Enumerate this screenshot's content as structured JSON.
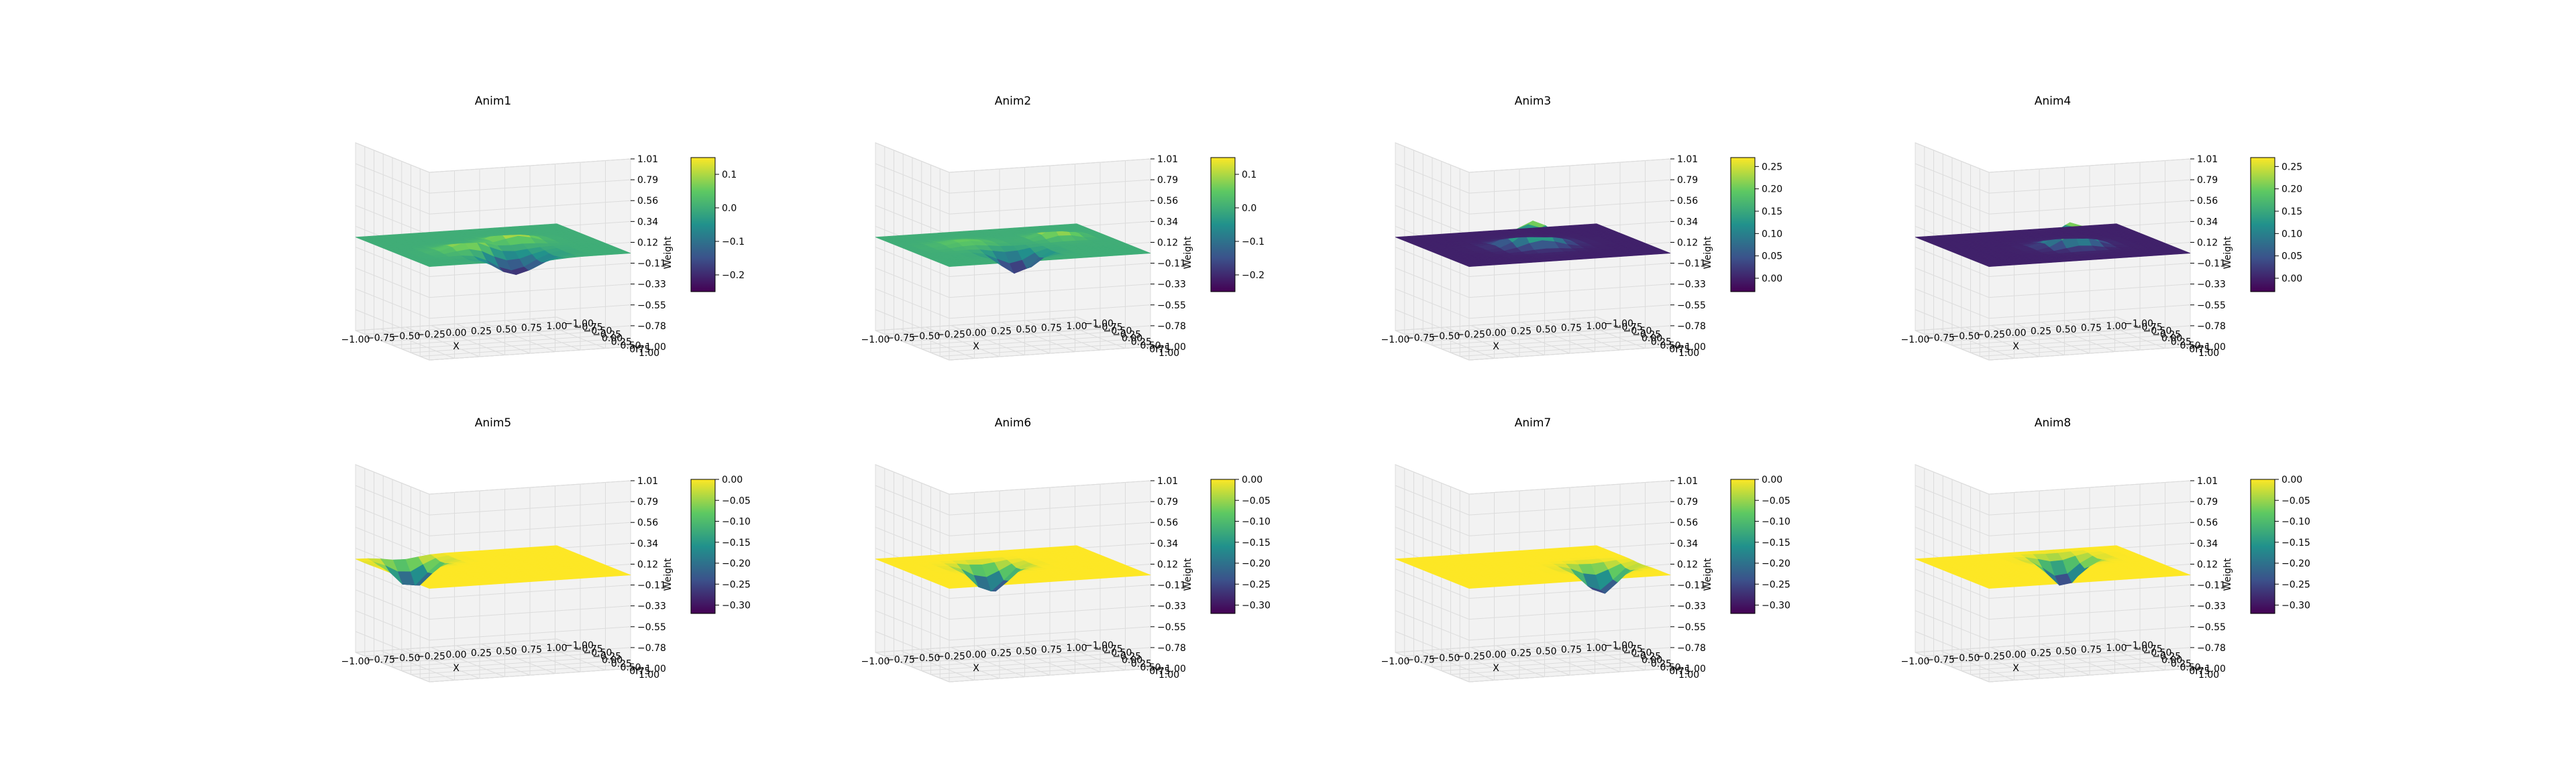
{
  "figure": {
    "grid": true,
    "colormap": [
      "#440154",
      "#3b528b",
      "#21918c",
      "#5ec962",
      "#fde725"
    ]
  },
  "chart_data": [
    {
      "type": "surface3d",
      "title": "Anim1",
      "xlabel": "X",
      "ylabel": "Y",
      "zlabel": "Weight",
      "xlim": [
        -1,
        1
      ],
      "ylim": [
        -1,
        1
      ],
      "zlim": [
        -1.0,
        1.01
      ],
      "x_ticks": [
        "−1.00",
        "−0.75",
        "−0.50",
        "−0.25",
        "0.00",
        "0.25",
        "0.50",
        "0.75",
        "1.00"
      ],
      "y_ticks": [
        "−1.00",
        "−0.75",
        "−0.50",
        "−0.25",
        "0.00",
        "0.25",
        "0.50",
        "0.75",
        "1.00"
      ],
      "z_ticks": [
        "1.01",
        "0.79",
        "0.56",
        "0.34",
        "0.12",
        "−0.11",
        "−0.33",
        "−0.55",
        "−0.78",
        "−1.00"
      ],
      "colorbar_range": [
        -0.25,
        0.15
      ],
      "colorbar_ticks": [
        "0.1",
        "0.0",
        "−0.1",
        "−0.2"
      ],
      "surface": {
        "bumps": [
          [
            -0.3,
            0.2,
            0.12,
            0.35
          ],
          [
            0.25,
            -0.15,
            0.14,
            0.3
          ],
          [
            0.0,
            0.6,
            -0.22,
            0.4
          ]
        ]
      }
    },
    {
      "type": "surface3d",
      "title": "Anim2",
      "xlabel": "X",
      "ylabel": "Y",
      "zlabel": "Weight",
      "xlim": [
        -1,
        1
      ],
      "ylim": [
        -1,
        1
      ],
      "zlim": [
        -1.0,
        1.01
      ],
      "x_ticks": [
        "−1.00",
        "−0.75",
        "−0.50",
        "−0.25",
        "0.00",
        "0.25",
        "0.50",
        "0.75",
        "1.00"
      ],
      "y_ticks": [
        "−1.00",
        "−0.75",
        "−0.50",
        "−0.25",
        "0.00",
        "0.25",
        "0.50",
        "0.75",
        "1.00"
      ],
      "z_ticks": [
        "1.01",
        "0.79",
        "0.56",
        "0.34",
        "0.12",
        "−0.11",
        "−0.33",
        "−0.55",
        "−0.78",
        "−1.00"
      ],
      "colorbar_range": [
        -0.25,
        0.15
      ],
      "colorbar_ticks": [
        "0.1",
        "0.0",
        "−0.1",
        "−0.2"
      ],
      "surface": {
        "bumps": [
          [
            0.55,
            -0.3,
            0.14,
            0.25
          ],
          [
            -0.1,
            0.4,
            -0.24,
            0.3
          ],
          [
            -0.4,
            -0.2,
            0.06,
            0.35
          ]
        ]
      }
    },
    {
      "type": "surface3d",
      "title": "Anim3",
      "xlabel": "X",
      "ylabel": "Y",
      "zlabel": "Weight",
      "xlim": [
        -1,
        1
      ],
      "ylim": [
        -1,
        1
      ],
      "zlim": [
        -1.0,
        1.01
      ],
      "x_ticks": [
        "−1.00",
        "−0.75",
        "−0.50",
        "−0.25",
        "0.00",
        "0.25",
        "0.50",
        "0.75",
        "1.00"
      ],
      "y_ticks": [
        "−1.00",
        "−0.75",
        "−0.50",
        "−0.25",
        "0.00",
        "0.25",
        "0.50",
        "0.75",
        "1.00"
      ],
      "z_ticks": [
        "1.01",
        "0.79",
        "0.56",
        "0.34",
        "0.12",
        "−0.11",
        "−0.33",
        "−0.55",
        "−0.78",
        "−1.00"
      ],
      "colorbar_range": [
        -0.03,
        0.27
      ],
      "colorbar_ticks": [
        "0.25",
        "0.20",
        "0.15",
        "0.10",
        "0.05",
        "0.00"
      ],
      "surface": {
        "bumps": [
          [
            0.0,
            0.0,
            0.26,
            0.35
          ]
        ]
      }
    },
    {
      "type": "surface3d",
      "title": "Anim4",
      "xlabel": "X",
      "ylabel": "Y",
      "zlabel": "Weight",
      "xlim": [
        -1,
        1
      ],
      "ylim": [
        -1,
        1
      ],
      "zlim": [
        -1.0,
        1.01
      ],
      "x_ticks": [
        "−1.00",
        "−0.75",
        "−0.50",
        "−0.25",
        "0.00",
        "0.25",
        "0.50",
        "0.75",
        "1.00"
      ],
      "y_ticks": [
        "−1.00",
        "−0.75",
        "−0.50",
        "−0.25",
        "0.00",
        "0.25",
        "0.50",
        "0.75",
        "1.00"
      ],
      "z_ticks": [
        "1.01",
        "0.79",
        "0.56",
        "0.34",
        "0.12",
        "−0.11",
        "−0.33",
        "−0.55",
        "−0.78",
        "−1.00"
      ],
      "colorbar_range": [
        -0.03,
        0.27
      ],
      "colorbar_ticks": [
        "0.25",
        "0.20",
        "0.15",
        "0.10",
        "0.05",
        "0.00"
      ],
      "surface": {
        "bumps": [
          [
            0.15,
            0.1,
            0.26,
            0.3
          ]
        ]
      }
    },
    {
      "type": "surface3d",
      "title": "Anim5",
      "xlabel": "X",
      "ylabel": "Y",
      "zlabel": "Weight",
      "xlim": [
        -1,
        1
      ],
      "ylim": [
        -1,
        1
      ],
      "zlim": [
        -1.0,
        1.01
      ],
      "x_ticks": [
        "−1.00",
        "−0.75",
        "−0.50",
        "−0.25",
        "0.00",
        "0.25",
        "0.50",
        "0.75",
        "1.00"
      ],
      "y_ticks": [
        "−1.00",
        "−0.75",
        "−0.50",
        "−0.25",
        "0.00",
        "0.25",
        "0.50",
        "0.75",
        "1.00"
      ],
      "z_ticks": [
        "1.01",
        "0.79",
        "0.56",
        "0.34",
        "0.12",
        "−0.11",
        "−0.33",
        "−0.55",
        "−0.78",
        "−1.00"
      ],
      "colorbar_range": [
        -0.32,
        0.0
      ],
      "colorbar_ticks": [
        "0.00",
        "−0.05",
        "−0.10",
        "−0.15",
        "−0.20",
        "−0.25",
        "−0.30"
      ],
      "surface": {
        "bumps": [
          [
            -0.55,
            -0.7,
            -0.31,
            0.3
          ]
        ]
      }
    },
    {
      "type": "surface3d",
      "title": "Anim6",
      "xlabel": "X",
      "ylabel": "Y",
      "zlabel": "Weight",
      "xlim": [
        -1,
        1
      ],
      "ylim": [
        -1,
        1
      ],
      "zlim": [
        -1.0,
        1.01
      ],
      "x_ticks": [
        "−1.00",
        "−0.75",
        "−0.50",
        "−0.25",
        "0.00",
        "0.25",
        "0.50",
        "0.75",
        "1.00"
      ],
      "y_ticks": [
        "−1.00",
        "−0.75",
        "−0.50",
        "−0.25",
        "0.00",
        "0.25",
        "0.50",
        "0.75",
        "1.00"
      ],
      "z_ticks": [
        "1.01",
        "0.79",
        "0.56",
        "0.34",
        "0.12",
        "−0.11",
        "−0.33",
        "−0.55",
        "−0.78",
        "−1.00"
      ],
      "colorbar_range": [
        -0.32,
        0.0
      ],
      "colorbar_ticks": [
        "0.00",
        "−0.05",
        "−0.10",
        "−0.15",
        "−0.20",
        "−0.25",
        "−0.30"
      ],
      "surface": {
        "bumps": [
          [
            -0.15,
            -0.2,
            -0.31,
            0.3
          ]
        ]
      }
    },
    {
      "type": "surface3d",
      "title": "Anim7",
      "xlabel": "X",
      "ylabel": "Y",
      "zlabel": "Weight",
      "xlim": [
        -1,
        1
      ],
      "ylim": [
        -1,
        1
      ],
      "zlim": [
        -1.0,
        1.01
      ],
      "x_ticks": [
        "−1.00",
        "−0.75",
        "−0.50",
        "−0.25",
        "0.00",
        "0.25",
        "0.50",
        "0.75",
        "1.00"
      ],
      "y_ticks": [
        "−1.00",
        "−0.75",
        "−0.50",
        "−0.25",
        "0.00",
        "0.25",
        "0.50",
        "0.75",
        "1.00"
      ],
      "z_ticks": [
        "1.01",
        "0.79",
        "0.56",
        "0.34",
        "0.12",
        "−0.11",
        "−0.33",
        "−0.55",
        "−0.78",
        "−1.00"
      ],
      "colorbar_range": [
        -0.32,
        0.0
      ],
      "colorbar_ticks": [
        "0.00",
        "−0.05",
        "−0.10",
        "−0.15",
        "−0.20",
        "−0.25",
        "−0.30"
      ],
      "surface": {
        "bumps": [
          [
            0.6,
            0.2,
            -0.31,
            0.3
          ]
        ]
      }
    },
    {
      "type": "surface3d",
      "title": "Anim8",
      "xlabel": "X",
      "ylabel": "Y",
      "zlabel": "Weight",
      "xlim": [
        -1,
        1
      ],
      "ylim": [
        -1,
        1
      ],
      "zlim": [
        -1.0,
        1.01
      ],
      "x_ticks": [
        "−1.00",
        "−0.75",
        "−0.50",
        "−0.25",
        "0.00",
        "0.25",
        "0.50",
        "0.75",
        "1.00"
      ],
      "y_ticks": [
        "−1.00",
        "−0.75",
        "−0.50",
        "−0.25",
        "0.00",
        "0.25",
        "0.50",
        "0.75",
        "1.00"
      ],
      "z_ticks": [
        "1.01",
        "0.79",
        "0.56",
        "0.34",
        "0.12",
        "−0.11",
        "−0.33",
        "−0.55",
        "−0.78",
        "−1.00"
      ],
      "colorbar_range": [
        -0.32,
        0.0
      ],
      "colorbar_ticks": [
        "0.00",
        "−0.05",
        "−0.10",
        "−0.15",
        "−0.20",
        "−0.25",
        "−0.30"
      ],
      "surface": {
        "bumps": [
          [
            0.3,
            -0.5,
            -0.31,
            0.3
          ]
        ]
      }
    }
  ]
}
